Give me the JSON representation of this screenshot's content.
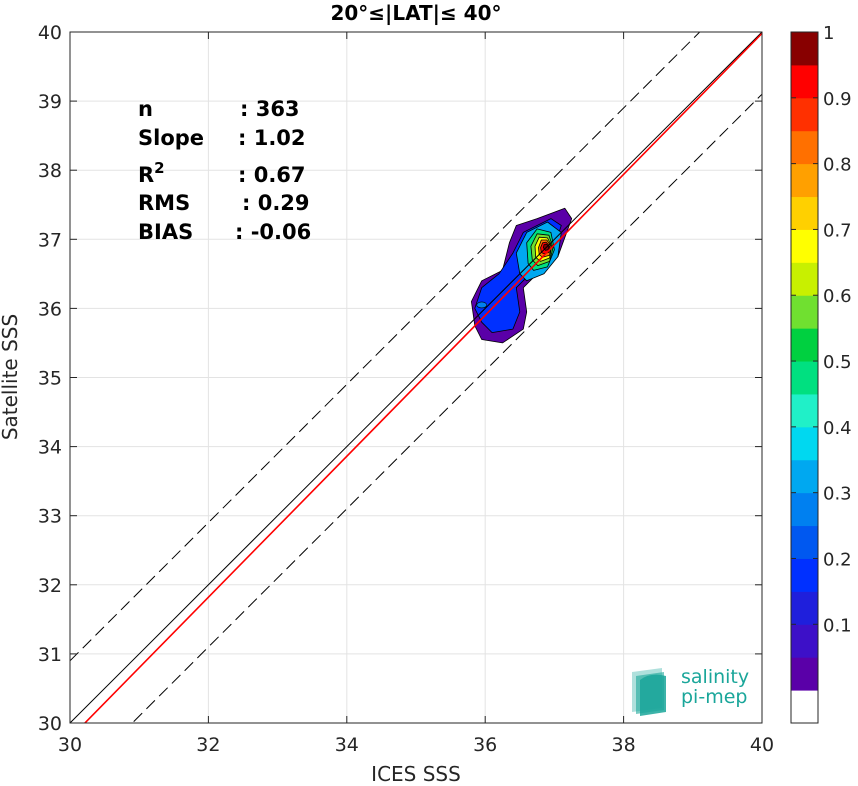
{
  "chart_data": {
    "type": "scatter",
    "title": "20°≤|LAT|≤ 40°",
    "xlabel": "ICES SSS",
    "ylabel": "Satellite SSS",
    "xlim": [
      30,
      40
    ],
    "ylim": [
      30,
      40
    ],
    "x_ticks": [
      "30",
      "32",
      "34",
      "36",
      "38",
      "40"
    ],
    "y_ticks": [
      "30",
      "31",
      "32",
      "33",
      "34",
      "35",
      "36",
      "37",
      "38",
      "39",
      "40"
    ],
    "grid": true,
    "stats": [
      {
        "label": "n",
        "value": ": 363"
      },
      {
        "label": "Slope",
        "value": ": 1.02"
      },
      {
        "label": "R",
        "sup": "2",
        "value": ": 0.67"
      },
      {
        "label": "RMS",
        "value": ": 0.29"
      },
      {
        "label": "BIAS",
        "value": ": -0.06"
      }
    ],
    "lines": [
      {
        "kind": "one-to-one",
        "color": "#000000",
        "dash": "solid",
        "slope": 1,
        "intercept": 0
      },
      {
        "kind": "regression",
        "color": "#ff0000",
        "dash": "solid",
        "slope": 1.02,
        "intercept": -0.82
      },
      {
        "kind": "upper-bound",
        "color": "#000000",
        "dash": "dashed",
        "slope": 1,
        "intercept": 0.9
      },
      {
        "kind": "lower-bound",
        "color": "#000000",
        "dash": "dashed",
        "slope": 1,
        "intercept": -0.9
      }
    ],
    "density_center": [
      36.9,
      36.9
    ],
    "density_peak": 1,
    "colorbar": {
      "ticks": [
        "0.1",
        "0.2",
        "0.3",
        "0.4",
        "0.5",
        "0.6",
        "0.7",
        "0.8",
        "0.9",
        "1"
      ],
      "levels": 20,
      "colors": [
        "#ffffff",
        "#5a00a8",
        "#3d10c8",
        "#1f1fdc",
        "#0030ff",
        "#0058f0",
        "#0080f0",
        "#00a8f0",
        "#00d8f0",
        "#20f0c8",
        "#00e080",
        "#00d040",
        "#70e030",
        "#c8f000",
        "#ffff00",
        "#ffd000",
        "#ffa000",
        "#ff7000",
        "#ff3000",
        "#ff0000",
        "#880000"
      ]
    }
  },
  "logo": {
    "line1": "salinity",
    "line2": "pi-mep"
  }
}
